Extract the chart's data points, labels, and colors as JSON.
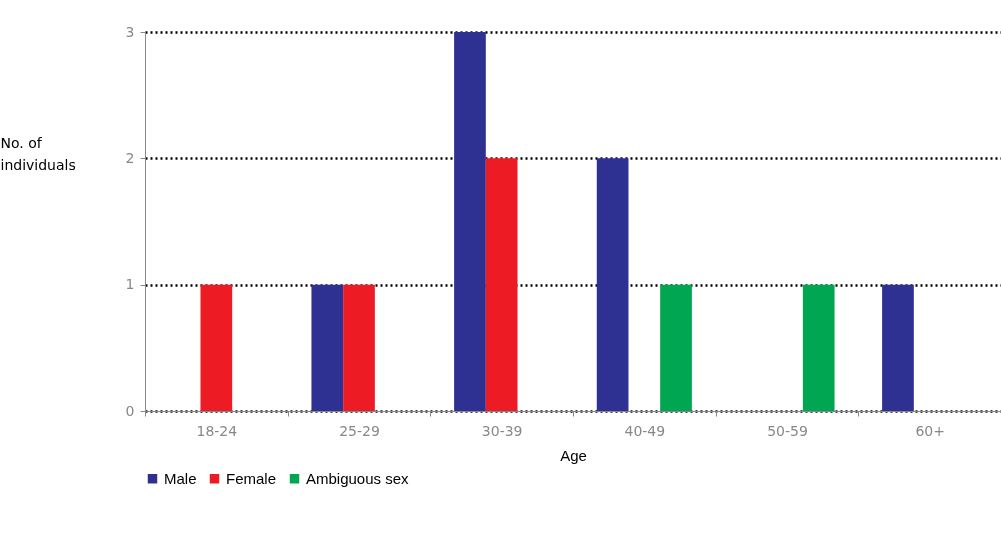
{
  "chart_data": {
    "type": "bar",
    "xlabel": "Age",
    "ylabel": "No. of individuals",
    "categories": [
      "18-24",
      "25-29",
      "30-39",
      "40-49",
      "50-59",
      "60+"
    ],
    "series": [
      {
        "name": "Male",
        "color": "#2e3192",
        "values": [
          null,
          1,
          3,
          2,
          null,
          1
        ]
      },
      {
        "name": "Female",
        "color": "#ed1c24",
        "values": [
          1,
          1,
          2,
          null,
          null,
          null
        ]
      },
      {
        "name": "Ambiguous sex",
        "color": "#00a651",
        "values": [
          null,
          null,
          null,
          1,
          1,
          null
        ]
      }
    ],
    "ylim": [
      0,
      3
    ],
    "yticks": [
      0,
      1,
      2,
      3
    ],
    "grid": "y",
    "legend": "bottom"
  }
}
